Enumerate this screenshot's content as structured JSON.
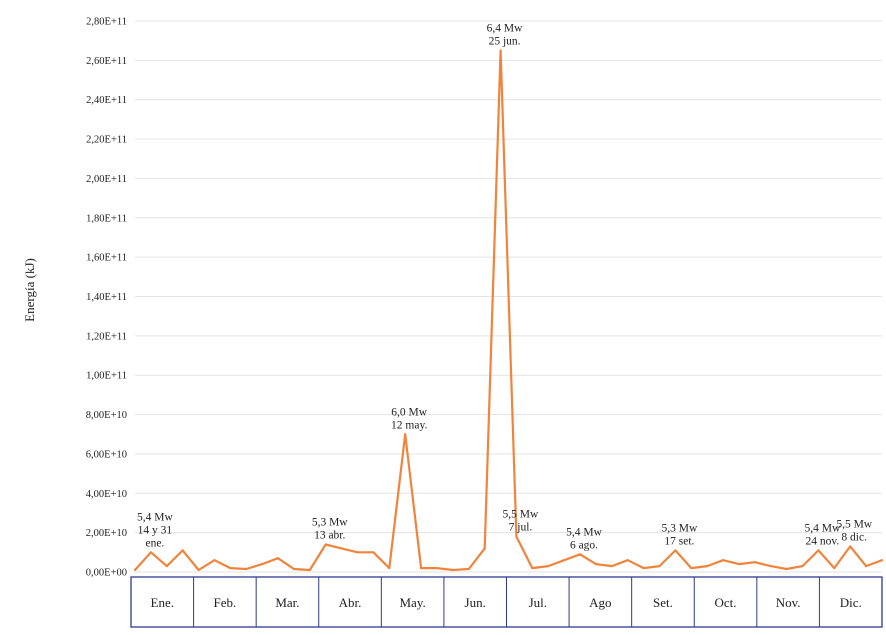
{
  "chart_data": {
    "type": "line",
    "ylabel": "Energía (kJ)",
    "ylim": [
      0,
      280000000000
    ],
    "grid": true,
    "yticks": [
      {
        "value": 0,
        "label": "0,00E+00"
      },
      {
        "value": 20000000000,
        "label": "2,00E+10"
      },
      {
        "value": 40000000000,
        "label": "4,00E+10"
      },
      {
        "value": 60000000000,
        "label": "6,00E+10"
      },
      {
        "value": 80000000000,
        "label": "8,00E+10"
      },
      {
        "value": 100000000000,
        "label": "1,00E+11"
      },
      {
        "value": 120000000000,
        "label": "1,20E+11"
      },
      {
        "value": 140000000000,
        "label": "1,40E+11"
      },
      {
        "value": 160000000000,
        "label": "1,60E+11"
      },
      {
        "value": 180000000000,
        "label": "1,80E+11"
      },
      {
        "value": 200000000000,
        "label": "2,00E+11"
      },
      {
        "value": 220000000000,
        "label": "2,20E+11"
      },
      {
        "value": 240000000000,
        "label": "2,40E+11"
      },
      {
        "value": 260000000000,
        "label": "2,60E+11"
      },
      {
        "value": 280000000000,
        "label": "2,80E+11"
      }
    ],
    "months": [
      "Ene.",
      "Feb.",
      "Mar.",
      "Abr.",
      "May.",
      "Jun.",
      "Jul.",
      "Ago",
      "Set.",
      "Oct.",
      "Nov.",
      "Dic."
    ],
    "line_color": "#f0843c",
    "values": [
      1000000000,
      10000000000,
      3000000000,
      11000000000,
      1000000000,
      6000000000,
      2000000000,
      1500000000,
      4000000000,
      7000000000,
      1500000000,
      1000000000,
      14000000000,
      12000000000,
      10000000000,
      10000000000,
      2000000000,
      70000000000,
      2000000000,
      2000000000,
      1000000000,
      1500000000,
      12000000000,
      265000000000,
      18000000000,
      2000000000,
      3000000000,
      6000000000,
      9000000000,
      4000000000,
      3000000000,
      6000000000,
      2000000000,
      3000000000,
      11000000000,
      2000000000,
      3000000000,
      6000000000,
      4000000000,
      5000000000,
      3000000000,
      1500000000,
      3000000000,
      11000000000,
      2000000000,
      13000000000,
      3000000000,
      6000000000
    ],
    "annotations": [
      {
        "lines": [
          "5,4 Mw",
          "14  y 31",
          "ene."
        ],
        "index": 1
      },
      {
        "lines": [
          "5,3 Mw",
          "13 abr."
        ],
        "index": 12
      },
      {
        "lines": [
          "6,0 Mw",
          "12 may."
        ],
        "index": 17
      },
      {
        "lines": [
          "6,4 Mw",
          "25 jun."
        ],
        "index": 23
      },
      {
        "lines": [
          "5,5 Mw",
          "7 jul."
        ],
        "index": 24
      },
      {
        "lines": [
          "5,4 Mw",
          "6 ago."
        ],
        "index": 28
      },
      {
        "lines": [
          "5,3 Mw",
          "17 set."
        ],
        "index": 34
      },
      {
        "lines": [
          "5,4 Mw",
          "24 nov."
        ],
        "index": 43
      },
      {
        "lines": [
          "5,5 Mw",
          "8 dic."
        ],
        "index": 45
      }
    ]
  }
}
